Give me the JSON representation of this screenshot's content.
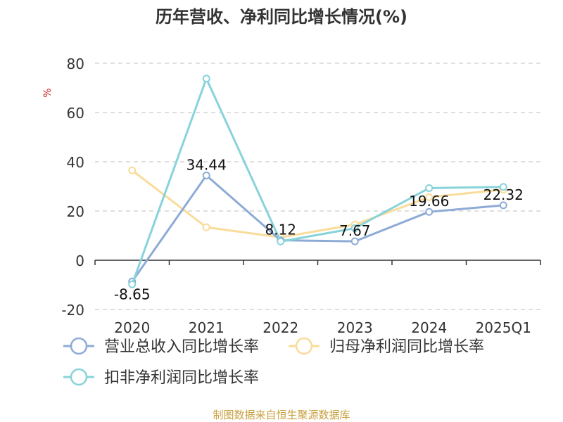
{
  "chart_data": {
    "type": "line",
    "title": "历年营收、净利同比增长情况(%)",
    "ylabel": "%",
    "xlabel": "",
    "categories": [
      "2020",
      "2021",
      "2022",
      "2023",
      "2024",
      "2025Q1"
    ],
    "yticks": [
      "80",
      "60",
      "40",
      "20",
      "0",
      "-20"
    ],
    "ylim": [
      -20,
      80
    ],
    "grid": true,
    "legend_position": "bottom",
    "series": [
      {
        "name": "营业总收入同比增长率",
        "color": "#8eabd6",
        "values": [
          -8.65,
          34.44,
          8.12,
          7.67,
          19.66,
          22.32
        ],
        "data_labels": [
          "-8.65",
          "34.44",
          "8.12",
          "7.67",
          "19.66",
          "22.32"
        ]
      },
      {
        "name": "归母净利润同比增长率",
        "color": "#fadc9a",
        "values": [
          36.5,
          13.4,
          9.3,
          14.5,
          25.6,
          28.7
        ]
      },
      {
        "name": "扣非净利润同比增长率",
        "color": "#88d3da",
        "values": [
          -9.8,
          73.8,
          7.6,
          13.0,
          29.3,
          29.8
        ]
      }
    ],
    "source": "制图数据来自恒生聚源数据库"
  }
}
